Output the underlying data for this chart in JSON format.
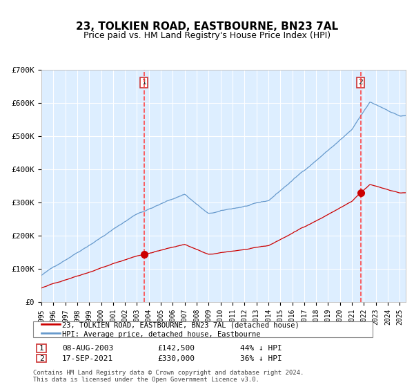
{
  "title": "23, TOLKIEN ROAD, EASTBOURNE, BN23 7AL",
  "subtitle": "Price paid vs. HM Land Registry's House Price Index (HPI)",
  "legend_label_red": "23, TOLKIEN ROAD, EASTBOURNE, BN23 7AL (detached house)",
  "legend_label_blue": "HPI: Average price, detached house, Eastbourne",
  "transaction1_label": "1",
  "transaction1_date": "08-AUG-2003",
  "transaction1_price": "£142,500",
  "transaction1_pct": "44% ↓ HPI",
  "transaction1_year": 2003.6,
  "transaction1_value": 142500,
  "transaction2_label": "2",
  "transaction2_date": "17-SEP-2021",
  "transaction2_price": "£330,000",
  "transaction2_pct": "36% ↓ HPI",
  "transaction2_year": 2021.72,
  "transaction2_value": 330000,
  "color_red": "#cc0000",
  "color_blue": "#6699cc",
  "color_bg": "#ddeeff",
  "color_grid": "#ffffff",
  "color_dashed": "#ff4444",
  "footnote": "Contains HM Land Registry data © Crown copyright and database right 2024.\nThis data is licensed under the Open Government Licence v3.0.",
  "ylim": [
    0,
    700000
  ],
  "yticks": [
    0,
    100000,
    200000,
    300000,
    400000,
    500000,
    600000,
    700000
  ],
  "ytick_labels": [
    "£0",
    "£100K",
    "£200K",
    "£300K",
    "£400K",
    "£500K",
    "£600K",
    "£700K"
  ]
}
